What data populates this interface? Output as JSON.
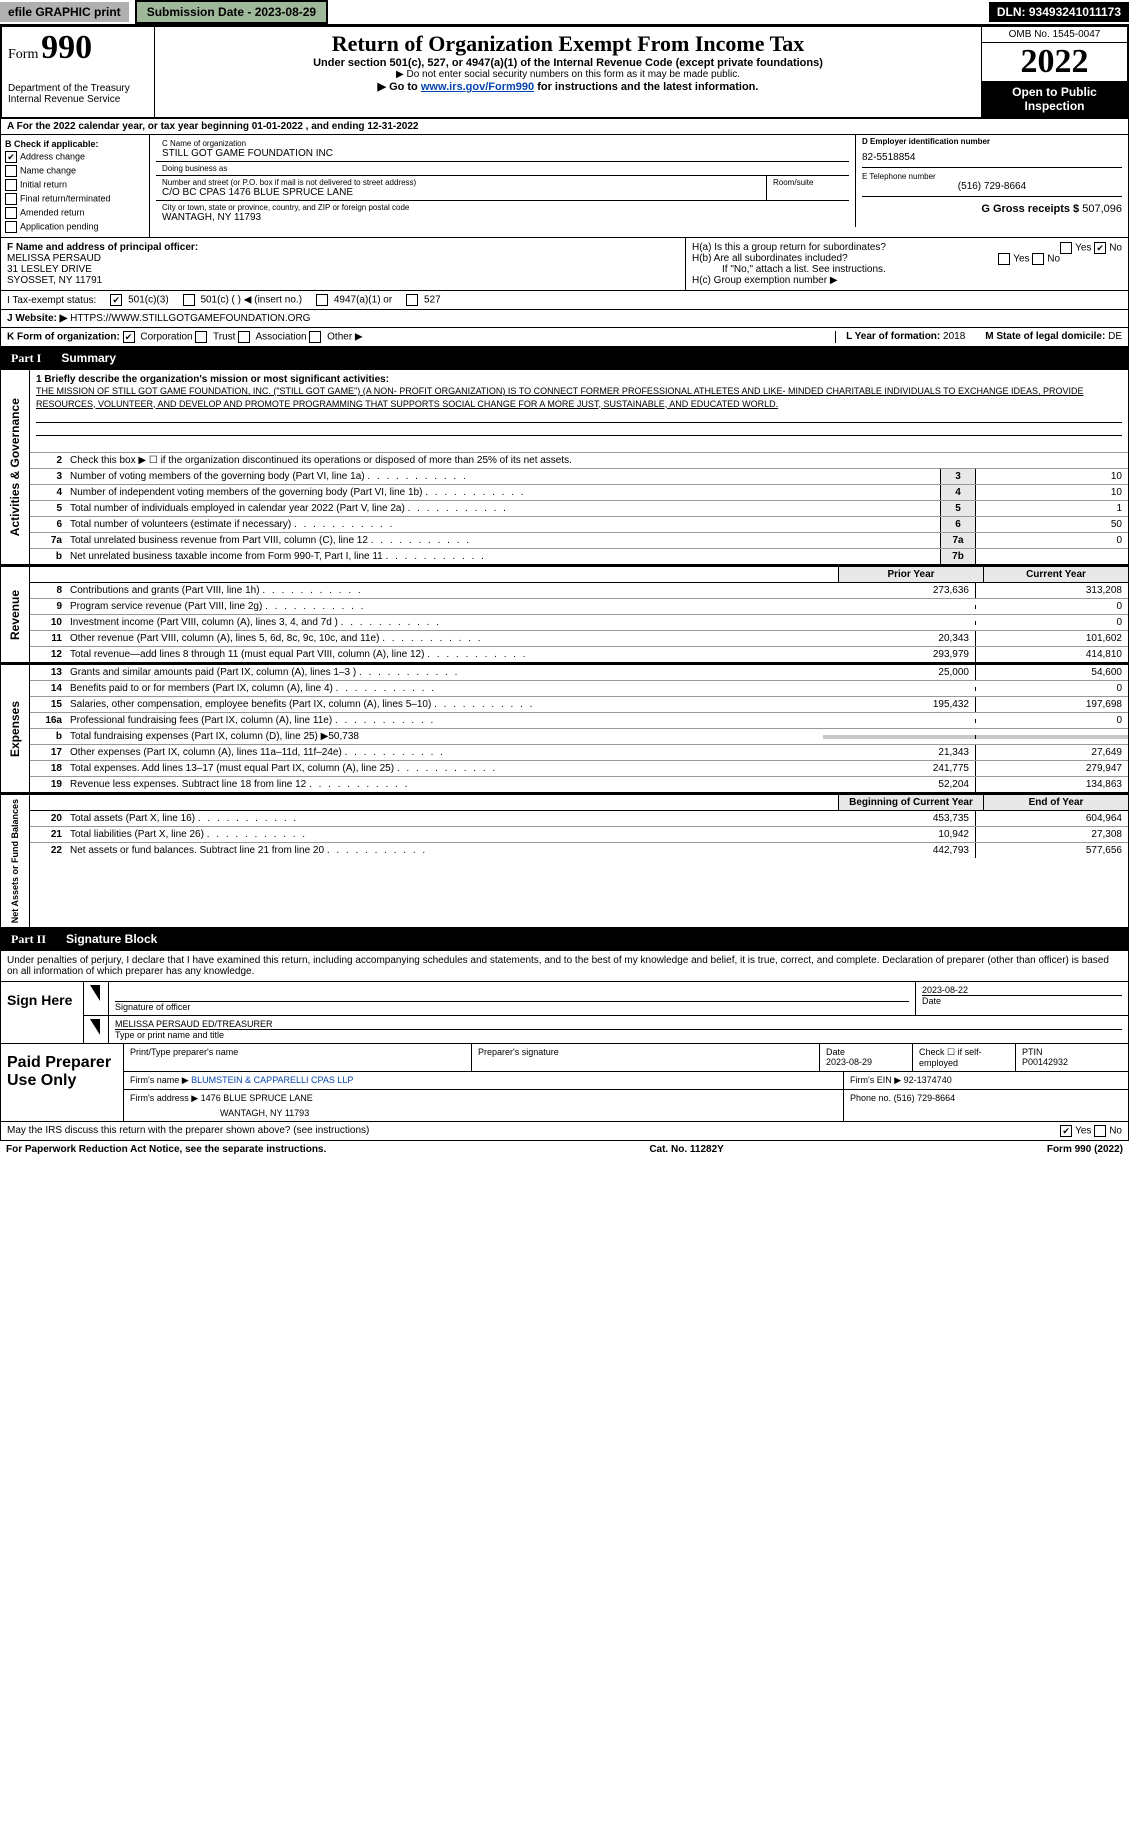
{
  "topbar": {
    "efile": "efile GRAPHIC print",
    "submission": "Submission Date - 2023-08-29",
    "dln": "DLN: 93493241011173"
  },
  "header": {
    "form_label": "Form",
    "form_num": "990",
    "dept": "Department of the Treasury",
    "irs": "Internal Revenue Service",
    "title": "Return of Organization Exempt From Income Tax",
    "sub1": "Under section 501(c), 527, or 4947(a)(1) of the Internal Revenue Code (except private foundations)",
    "sub2": "▶ Do not enter social security numbers on this form as it may be made public.",
    "sub3a": "▶ Go to ",
    "sub3_link": "www.irs.gov/Form990",
    "sub3b": " for instructions and the latest information.",
    "omb": "OMB No. 1545-0047",
    "year": "2022",
    "open_pub": "Open to Public Inspection"
  },
  "rowA": {
    "text": "A For the 2022 calendar year, or tax year beginning 01-01-2022   , and ending 12-31-2022"
  },
  "colB": {
    "label": "B Check if applicable:",
    "items": [
      "Address change",
      "Name change",
      "Initial return",
      "Final return/terminated",
      "Amended return",
      "Application pending"
    ],
    "checked": [
      true,
      false,
      false,
      false,
      false,
      false
    ]
  },
  "colC": {
    "name_label": "C Name of organization",
    "name": "STILL GOT GAME FOUNDATION INC",
    "dba_label": "Doing business as",
    "dba": "",
    "addr_label": "Number and street (or P.O. box if mail is not delivered to street address)",
    "room_label": "Room/suite",
    "addr": "C/O BC CPAS 1476 BLUE SPRUCE LANE",
    "city_label": "City or town, state or province, country, and ZIP or foreign postal code",
    "city": "WANTAGH, NY  11793"
  },
  "colDEFG": {
    "d_label": "D Employer identification number",
    "d_val": "82-5518854",
    "e_label": "E Telephone number",
    "e_val": "(516) 729-8664",
    "g_label": "G Gross receipts $",
    "g_val": "507,096"
  },
  "rowF": {
    "label": "F  Name and address of principal officer:",
    "name": "MELISSA PERSAUD",
    "addr1": "31 LESLEY DRIVE",
    "addr2": "SYOSSET, NY  11791"
  },
  "rowH": {
    "ha": "H(a)  Is this a group return for subordinates?",
    "ha_yes": "Yes",
    "ha_no": "No",
    "hb": "H(b)  Are all subordinates included?",
    "hb_yes": "Yes",
    "hb_no": "No",
    "hb_note": "If \"No,\" attach a list. See instructions.",
    "hc": "H(c)  Group exemption number ▶"
  },
  "rowI": {
    "label": "I    Tax-exempt status:",
    "c3": "501(c)(3)",
    "c": "501(c) (   ) ◀ (insert no.)",
    "a1": "4947(a)(1) or",
    "t527": "527"
  },
  "rowJ": {
    "label": "J   Website: ▶",
    "val": "HTTPS://WWW.STILLGOTGAMEFOUNDATION.ORG"
  },
  "rowK": {
    "label": "K Form of organization:",
    "corp": "Corporation",
    "trust": "Trust",
    "assoc": "Association",
    "other": "Other ▶",
    "l_label": "L Year of formation:",
    "l_val": "2018",
    "m_label": "M State of legal domicile:",
    "m_val": "DE"
  },
  "part1": {
    "label": "Part I",
    "title": "Summary"
  },
  "mission": {
    "label": "1  Briefly describe the organization's mission or most significant activities:",
    "text": "THE MISSION OF STILL GOT GAME FOUNDATION, INC. (\"STILL GOT GAME\") (A NON- PROFIT ORGANIZATION) IS TO CONNECT FORMER PROFESSIONAL ATHLETES AND LIKE- MINDED CHARITABLE INDIVIDUALS TO EXCHANGE IDEAS, PROVIDE RESOURCES, VOLUNTEER, AND DEVELOP AND PROMOTE PROGRAMMING THAT SUPPORTS SOCIAL CHANGE FOR A MORE JUST, SUSTAINABLE, AND EDUCATED WORLD."
  },
  "side_labels": {
    "gov": "Activities & Governance",
    "rev": "Revenue",
    "exp": "Expenses",
    "net": "Net Assets or Fund Balances"
  },
  "gov_rows": [
    {
      "n": "2",
      "d": "Check this box ▶ ☐  if the organization discontinued its operations or disposed of more than 25% of its net assets."
    },
    {
      "n": "3",
      "d": "Number of voting members of the governing body (Part VI, line 1a)",
      "box": "3",
      "v": "10"
    },
    {
      "n": "4",
      "d": "Number of independent voting members of the governing body (Part VI, line 1b)",
      "box": "4",
      "v": "10"
    },
    {
      "n": "5",
      "d": "Total number of individuals employed in calendar year 2022 (Part V, line 2a)",
      "box": "5",
      "v": "1"
    },
    {
      "n": "6",
      "d": "Total number of volunteers (estimate if necessary)",
      "box": "6",
      "v": "50"
    },
    {
      "n": "7a",
      "d": "Total unrelated business revenue from Part VIII, column (C), line 12",
      "box": "7a",
      "v": "0"
    },
    {
      "n": "b",
      "d": "Net unrelated business taxable income from Form 990-T, Part I, line 11",
      "box": "7b",
      "v": ""
    }
  ],
  "year_headers": {
    "prior": "Prior Year",
    "current": "Current Year"
  },
  "rev_rows": [
    {
      "n": "8",
      "d": "Contributions and grants (Part VIII, line 1h)",
      "p": "273,636",
      "c": "313,208"
    },
    {
      "n": "9",
      "d": "Program service revenue (Part VIII, line 2g)",
      "p": "",
      "c": "0"
    },
    {
      "n": "10",
      "d": "Investment income (Part VIII, column (A), lines 3, 4, and 7d )",
      "p": "",
      "c": "0"
    },
    {
      "n": "11",
      "d": "Other revenue (Part VIII, column (A), lines 5, 6d, 8c, 9c, 10c, and 11e)",
      "p": "20,343",
      "c": "101,602"
    },
    {
      "n": "12",
      "d": "Total revenue—add lines 8 through 11 (must equal Part VIII, column (A), line 12)",
      "p": "293,979",
      "c": "414,810"
    }
  ],
  "exp_rows": [
    {
      "n": "13",
      "d": "Grants and similar amounts paid (Part IX, column (A), lines 1–3 )",
      "p": "25,000",
      "c": "54,600"
    },
    {
      "n": "14",
      "d": "Benefits paid to or for members (Part IX, column (A), line 4)",
      "p": "",
      "c": "0"
    },
    {
      "n": "15",
      "d": "Salaries, other compensation, employee benefits (Part IX, column (A), lines 5–10)",
      "p": "195,432",
      "c": "197,698"
    },
    {
      "n": "16a",
      "d": "Professional fundraising fees (Part IX, column (A), line 11e)",
      "p": "",
      "c": "0"
    },
    {
      "n": "b",
      "d": "Total fundraising expenses (Part IX, column (D), line 25) ▶50,738",
      "p": null,
      "c": null
    },
    {
      "n": "17",
      "d": "Other expenses (Part IX, column (A), lines 11a–11d, 11f–24e)",
      "p": "21,343",
      "c": "27,649"
    },
    {
      "n": "18",
      "d": "Total expenses. Add lines 13–17 (must equal Part IX, column (A), line 25)",
      "p": "241,775",
      "c": "279,947"
    },
    {
      "n": "19",
      "d": "Revenue less expenses. Subtract line 18 from line 12",
      "p": "52,204",
      "c": "134,863"
    }
  ],
  "net_headers": {
    "begin": "Beginning of Current Year",
    "end": "End of Year"
  },
  "net_rows": [
    {
      "n": "20",
      "d": "Total assets (Part X, line 16)",
      "p": "453,735",
      "c": "604,964"
    },
    {
      "n": "21",
      "d": "Total liabilities (Part X, line 26)",
      "p": "10,942",
      "c": "27,308"
    },
    {
      "n": "22",
      "d": "Net assets or fund balances. Subtract line 21 from line 20",
      "p": "442,793",
      "c": "577,656"
    }
  ],
  "part2": {
    "label": "Part II",
    "title": "Signature Block"
  },
  "sig": {
    "penalty": "Under penalties of perjury, I declare that I have examined this return, including accompanying schedules and statements, and to the best of my knowledge and belief, it is true, correct, and complete. Declaration of preparer (other than officer) is based on all information of which preparer has any knowledge.",
    "sign_here": "Sign Here",
    "sig_officer": "Signature of officer",
    "date": "2023-08-22",
    "date_label": "Date",
    "name_title": "MELISSA PERSAUD  ED/TREASURER",
    "type_label": "Type or print name and title"
  },
  "paid": {
    "label": "Paid Preparer Use Only",
    "h1": "Print/Type preparer's name",
    "h2": "Preparer's signature",
    "h3": "Date",
    "h3v": "2023-08-29",
    "h4": "Check ☐ if self-employed",
    "h5": "PTIN",
    "h5v": "P00142932",
    "firm_name_l": "Firm's name    ▶",
    "firm_name": "BLUMSTEIN & CAPPARELLI CPAS LLP",
    "firm_ein_l": "Firm's EIN ▶",
    "firm_ein": "92-1374740",
    "firm_addr_l": "Firm's address ▶",
    "firm_addr1": "1476 BLUE SPRUCE LANE",
    "firm_addr2": "WANTAGH, NY  11793",
    "phone_l": "Phone no.",
    "phone": "(516) 729-8664"
  },
  "footer": {
    "q": "May the IRS discuss this return with the preparer shown above? (see instructions)",
    "yes": "Yes",
    "no": "No",
    "pra": "For Paperwork Reduction Act Notice, see the separate instructions.",
    "cat": "Cat. No. 11282Y",
    "form": "Form 990 (2022)"
  }
}
